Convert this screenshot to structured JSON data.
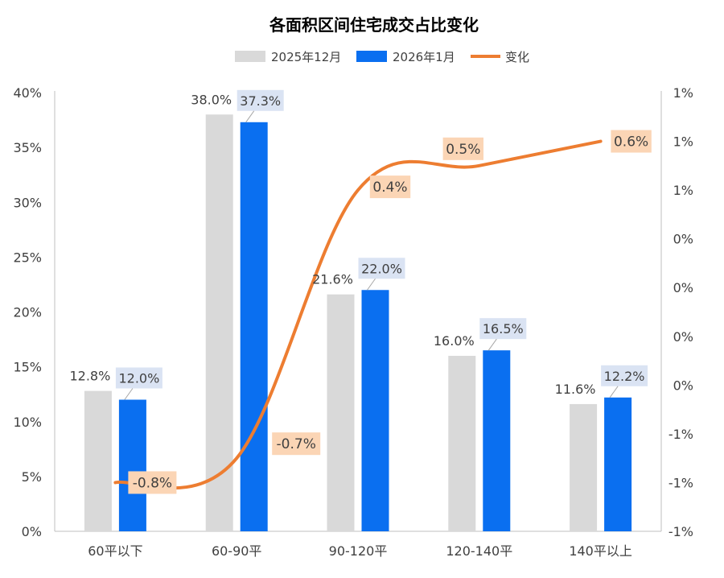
{
  "chart_data": {
    "type": "bar",
    "title": "各面积区间住宅成交占比变化",
    "categories": [
      "60平以下",
      "60-90平",
      "90-120平",
      "120-140平",
      "140平以上"
    ],
    "series": [
      {
        "name": "2025年12月",
        "type": "bar",
        "axis": "left",
        "color": "#d9d9d9",
        "values": [
          12.8,
          38.0,
          21.6,
          16.0,
          11.6
        ],
        "labels": [
          "12.8%",
          "38.0%",
          "21.6%",
          "16.0%",
          "11.6%"
        ]
      },
      {
        "name": "2026年1月",
        "type": "bar",
        "axis": "left",
        "color": "#0a6ff0",
        "values": [
          12.0,
          37.3,
          22.0,
          16.5,
          12.2
        ],
        "labels": [
          "12.0%",
          "37.3%",
          "22.0%",
          "16.5%",
          "12.2%"
        ]
      },
      {
        "name": "变化",
        "type": "line",
        "axis": "right",
        "color": "#ed7d31",
        "values": [
          -0.8,
          -0.7,
          0.4,
          0.5,
          0.6
        ],
        "labels": [
          "-0.8%",
          "-0.7%",
          "0.4%",
          "0.5%",
          "0.6%"
        ]
      }
    ],
    "y_left": {
      "min": 0,
      "max": 40,
      "ticks": [
        "0%",
        "5%",
        "10%",
        "15%",
        "20%",
        "25%",
        "30%",
        "35%",
        "40%"
      ]
    },
    "y_right": {
      "min": -1,
      "max": 0.8,
      "ticks": [
        "-1%",
        "-1%",
        "-1%",
        "0%",
        "0%",
        "0%",
        "0%",
        "1%",
        "1%",
        "1%"
      ]
    },
    "legend_position": "top",
    "bar_label_bg": "#dae3f3",
    "line_label_bg": "#fbd5b5"
  }
}
